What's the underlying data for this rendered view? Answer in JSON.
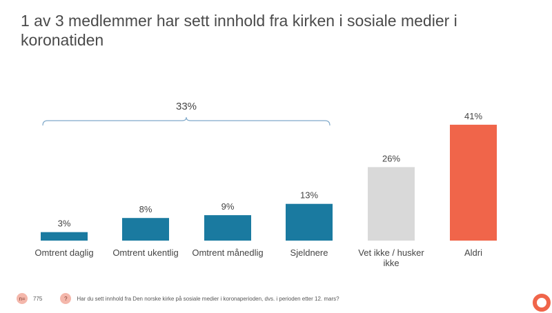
{
  "title": "1 av 3 medlemmer har sett innhold fra kirken i sosiale medier i koronatiden",
  "chart_data": {
    "type": "bar",
    "categories": [
      "Omtrent daglig",
      "Omtrent ukentlig",
      "Omtrent månedlig",
      "Sjeldnere",
      "Vet ikke / husker ikke",
      "Aldri"
    ],
    "values": [
      3,
      8,
      9,
      13,
      26,
      41
    ],
    "value_labels": [
      "3%",
      "8%",
      "9%",
      "13%",
      "26%",
      "41%"
    ],
    "colors": [
      "#1a7aa0",
      "#1a7aa0",
      "#1a7aa0",
      "#1a7aa0",
      "#d9d9d9",
      "#f0654a"
    ],
    "ylim": [
      0,
      45
    ],
    "grid": false,
    "bracket": {
      "label": "33%",
      "from_category": 0,
      "to_category": 3,
      "color": "#7fa8c9"
    }
  },
  "footer": {
    "n_badge": "n=",
    "n_value": "775",
    "question_badge": "?",
    "question_text": "Har du sett innhold fra Den norske kirke på sosiale medier i koronaperioden, dvs. i perioden etter 12. mars?"
  },
  "colors": {
    "accent": "#f0654a",
    "primary": "#1a7aa0",
    "neutral": "#d9d9d9"
  }
}
